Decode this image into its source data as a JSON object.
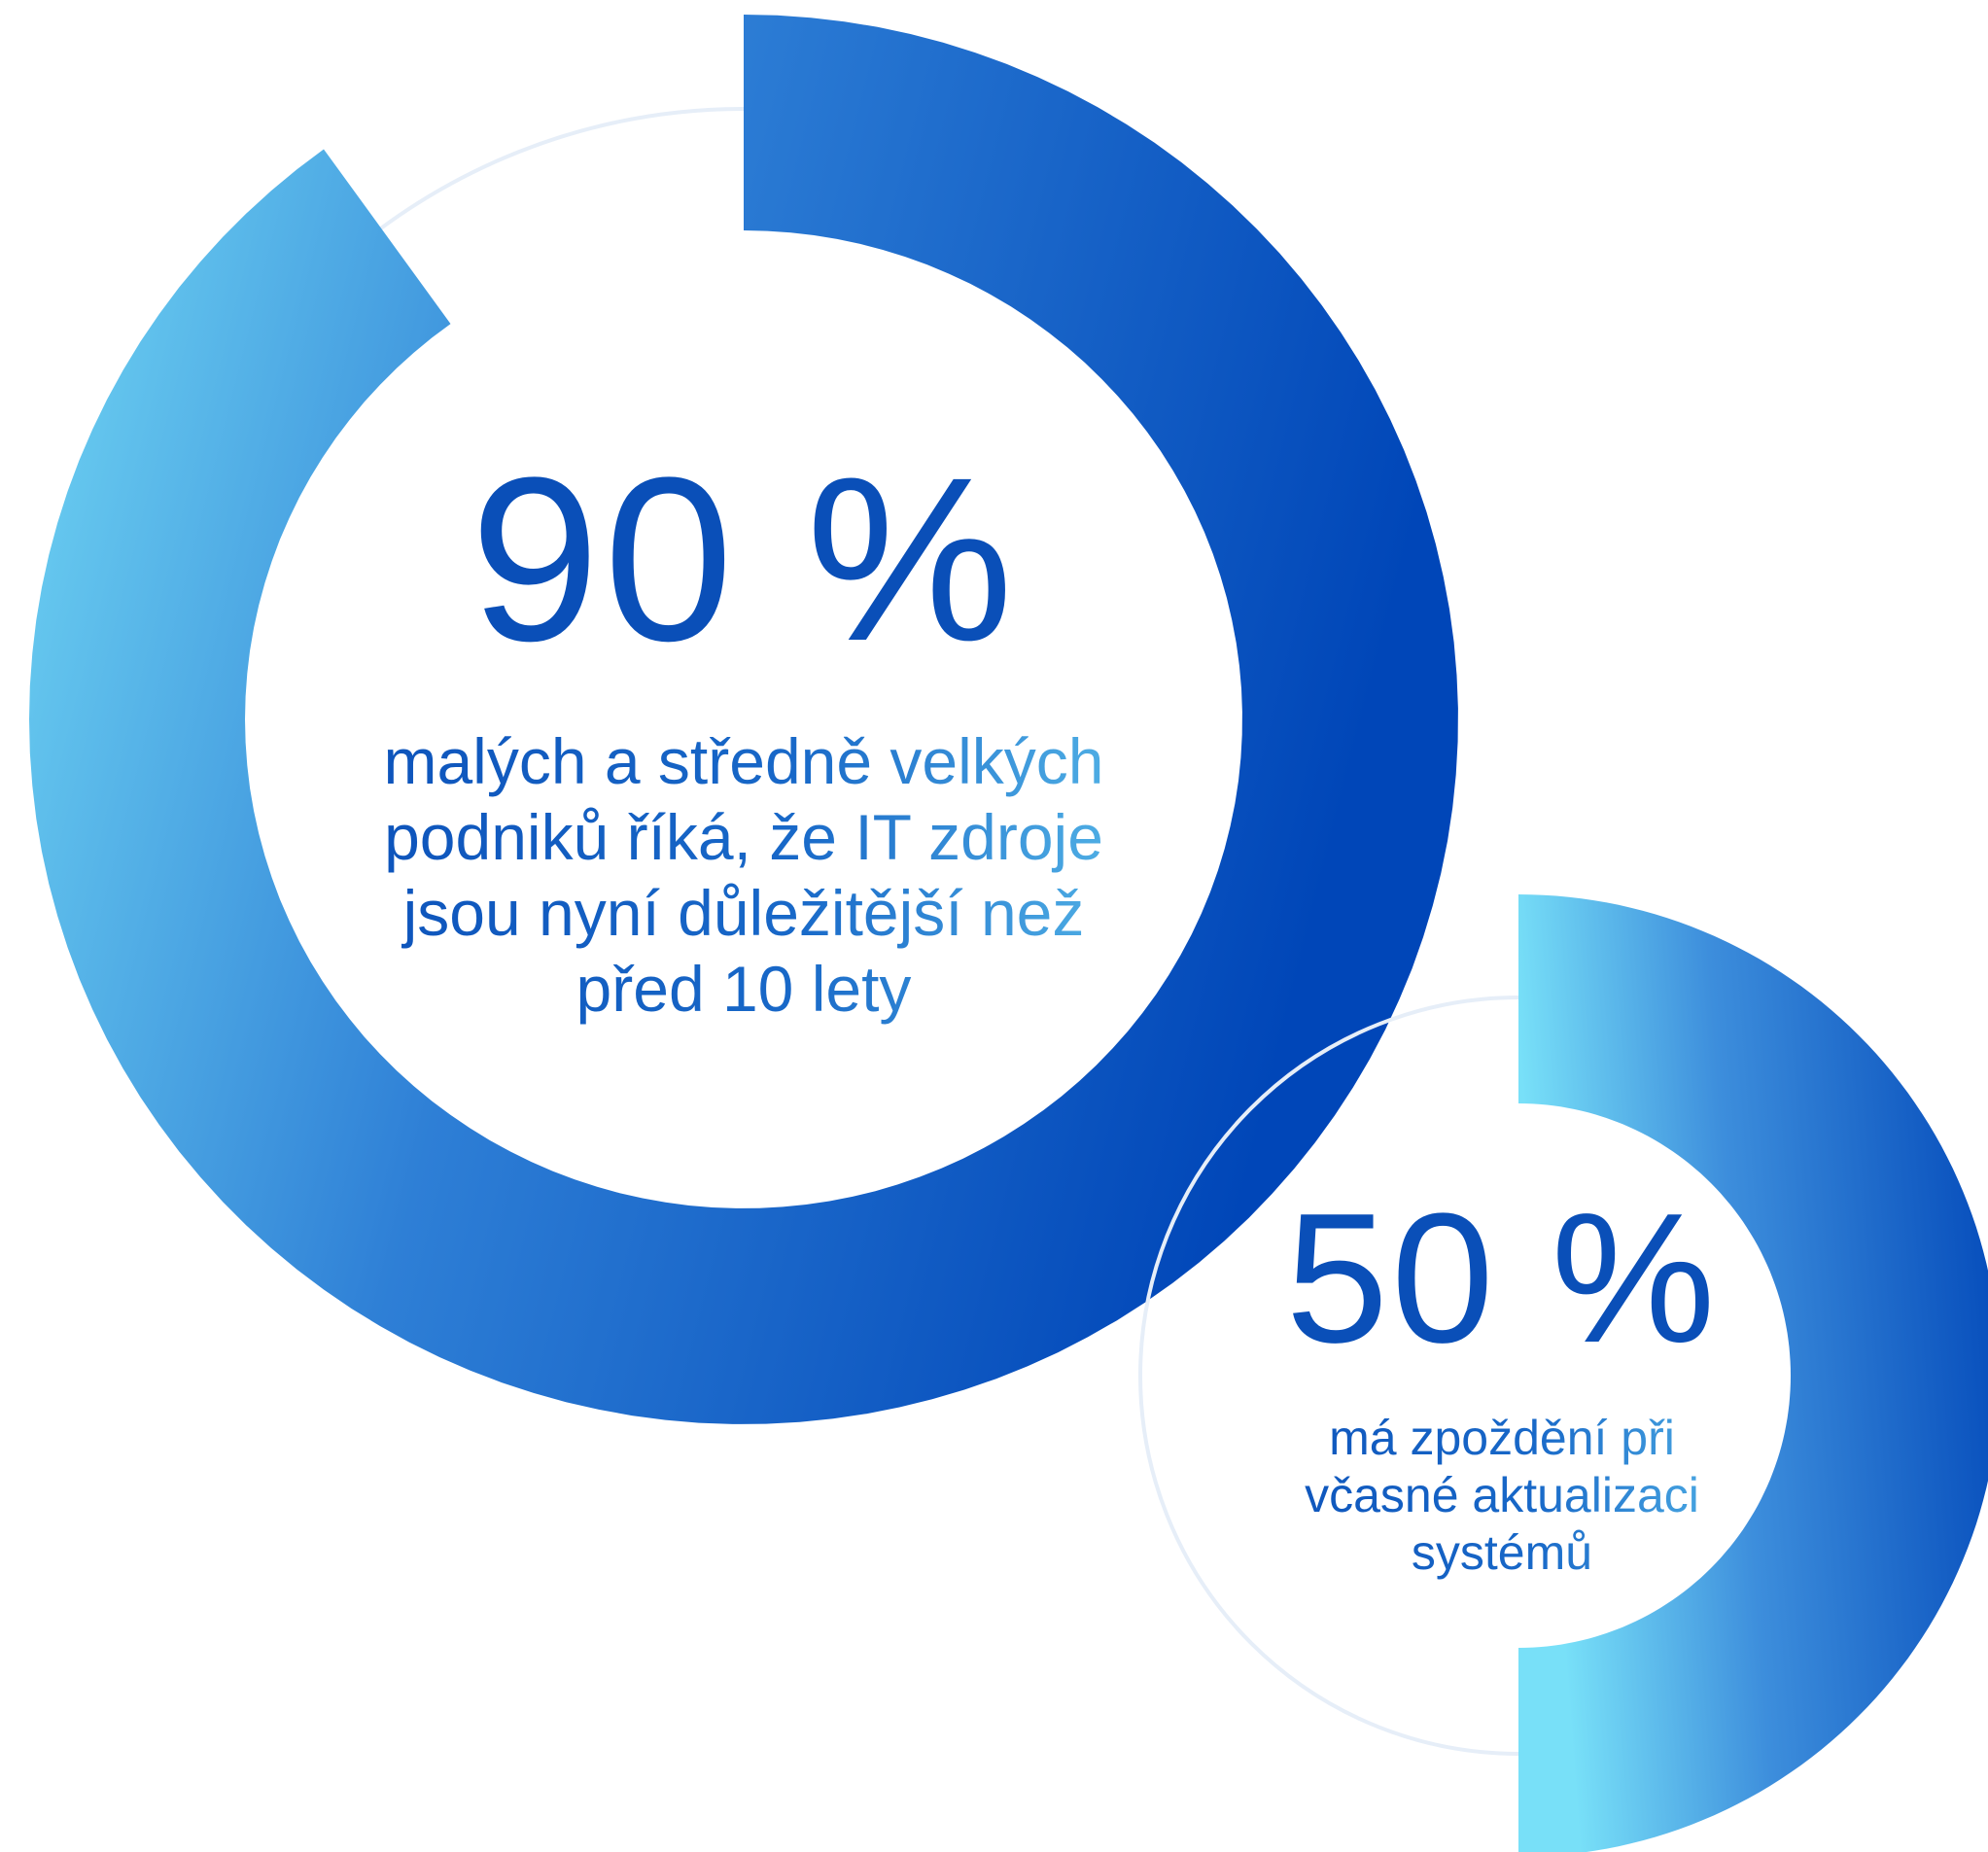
{
  "colors": {
    "ring_light": "#74dbf5",
    "ring_mid": "#3a8fdc",
    "ring_dark": "#0046b8",
    "track": "#e6eef8",
    "text_dark": "#0a4fb8",
    "text_light": "#63c8ef"
  },
  "chart_data": [
    {
      "type": "pie",
      "values": [
        90
      ],
      "value_label": "90 %",
      "description_lines": [
        "malých a středně velkých",
        "podniků říká, že IT zdroje",
        "jsou nyní důležitější než",
        "před 10 lety"
      ]
    },
    {
      "type": "pie",
      "values": [
        50
      ],
      "value_label": "50 %",
      "description_lines": [
        "má zpoždění při",
        "včasné aktualizaci",
        "systémů"
      ]
    }
  ]
}
